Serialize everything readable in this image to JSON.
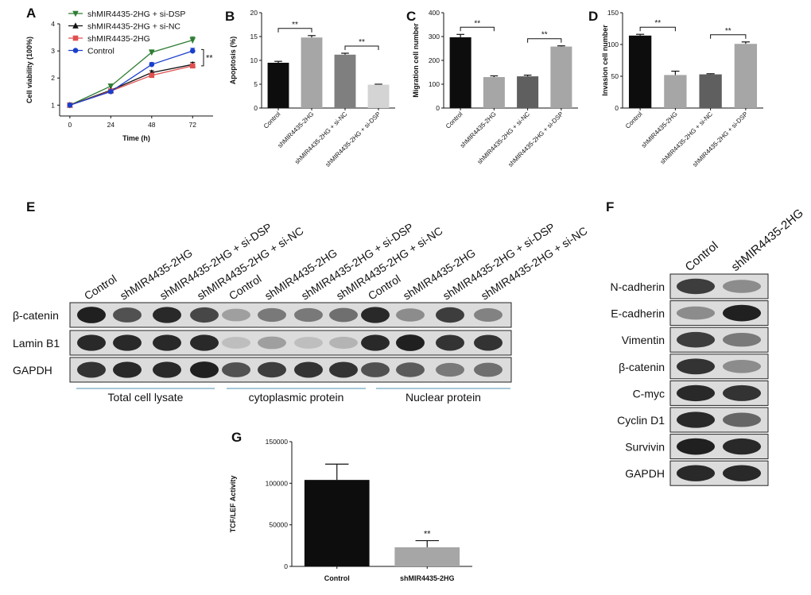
{
  "chart_data": [
    {
      "panel": "A",
      "type": "line",
      "xlabel": "Time (h)",
      "ylabel": "Cell viability (100%)",
      "x": [
        0,
        24,
        48,
        72
      ],
      "xticks": [
        "0",
        "24",
        "48",
        "72"
      ],
      "yticks": [
        "1",
        "2",
        "3",
        "4"
      ],
      "ylim": [
        0.6,
        4
      ],
      "series": [
        {
          "name": "shMIR4435-2HG + si-DSP",
          "color": "#2e7d32",
          "marker": "tri-down",
          "values": [
            1,
            1.7,
            2.95,
            3.4
          ],
          "err": [
            0,
            0.06,
            0.09,
            0.12
          ]
        },
        {
          "name": "shMIR4435-2HG + si-NC",
          "color": "#111111",
          "marker": "tri-up",
          "values": [
            1,
            1.55,
            2.2,
            2.5
          ],
          "err": [
            0,
            0.05,
            0.07,
            0.08
          ]
        },
        {
          "name": "shMIR4435-2HG",
          "color": "#e05050",
          "marker": "square",
          "values": [
            1,
            1.52,
            2.1,
            2.45
          ],
          "err": [
            0,
            0.04,
            0.06,
            0.07
          ]
        },
        {
          "name": "Control",
          "color": "#1a3fcc",
          "marker": "circle",
          "values": [
            1,
            1.5,
            2.5,
            3.0
          ],
          "err": [
            0,
            0.05,
            0.07,
            0.1
          ]
        }
      ],
      "annotation": "**"
    },
    {
      "panel": "B",
      "type": "bar",
      "ylabel": "Apoptosis (%)",
      "categories": [
        "Control",
        "shMIR4435-2HG",
        "shMIR4435-2HG + si-NC",
        "shMIR4435-2HG + si-DSP"
      ],
      "values": [
        9.5,
        14.8,
        11.2,
        4.9
      ],
      "err": [
        0.3,
        0.4,
        0.3,
        0.1
      ],
      "colors": [
        "#0d0d0d",
        "#a6a6a6",
        "#7f7f7f",
        "#d4d4d4"
      ],
      "yticks": [
        "0",
        "5",
        "10",
        "15",
        "20"
      ],
      "ylim": [
        0,
        20
      ],
      "significance": [
        {
          "pair": [
            0,
            1
          ],
          "label": "**"
        },
        {
          "pair": [
            2,
            3
          ],
          "label": "**"
        }
      ]
    },
    {
      "panel": "C",
      "type": "bar",
      "ylabel": "Migration cell number",
      "categories": [
        "Control",
        "shMIR4435-2HG",
        "shMIR4435-2HG + si-NC",
        "shMIR4435-2HG + si-DSP"
      ],
      "values": [
        297,
        130,
        133,
        258
      ],
      "err": [
        12,
        5,
        5,
        3
      ],
      "colors": [
        "#0d0d0d",
        "#a6a6a6",
        "#5f5f5f",
        "#a6a6a6"
      ],
      "yticks": [
        "0",
        "100",
        "200",
        "300",
        "400"
      ],
      "ylim": [
        0,
        400
      ],
      "significance": [
        {
          "pair": [
            0,
            1
          ],
          "label": "**"
        },
        {
          "pair": [
            2,
            3
          ],
          "label": "**"
        }
      ]
    },
    {
      "panel": "D",
      "type": "bar",
      "ylabel": "Invasion cell number",
      "categories": [
        "Control",
        "shMIR4435-2HG",
        "shMIR4435-2HG + si-NC",
        "shMIR4435-2HG + si-DSP"
      ],
      "values": [
        114,
        52,
        53,
        101
      ],
      "err": [
        2,
        6,
        1,
        3
      ],
      "colors": [
        "#0d0d0d",
        "#a6a6a6",
        "#5f5f5f",
        "#a6a6a6"
      ],
      "yticks": [
        "0",
        "50",
        "100",
        "150"
      ],
      "ylim": [
        0,
        150
      ],
      "significance": [
        {
          "pair": [
            0,
            1
          ],
          "label": "**"
        },
        {
          "pair": [
            2,
            3
          ],
          "label": "**"
        }
      ]
    },
    {
      "panel": "G",
      "type": "bar",
      "ylabel": "TCF/LEF Activity",
      "categories": [
        "Control",
        "shMIR4435-2HG"
      ],
      "values": [
        104000,
        23000
      ],
      "err": [
        19000,
        8000
      ],
      "colors": [
        "#0d0d0d",
        "#a6a6a6"
      ],
      "yticks": [
        "0",
        "50000",
        "100000",
        "150000"
      ],
      "ylim": [
        0,
        150000
      ],
      "annotation": "**"
    }
  ],
  "blot_e": {
    "label": "E",
    "lanes": [
      "Control",
      "shMIR4435-2HG",
      "shMIR4435-2HG + si-DSP",
      "shMIR4435-2HG + si-NC",
      "Control",
      "shMIR4435-2HG",
      "shMIR4435-2HG + si-DSP",
      "shMIR4435-2HG + si-NC",
      "Control",
      "shMIR4435-2HG",
      "shMIR4435-2HG + si-DSP",
      "shMIR4435-2HG + si-NC"
    ],
    "rows": [
      {
        "label": "β-catenin",
        "intensity": [
          0.95,
          0.7,
          0.9,
          0.75,
          0.3,
          0.5,
          0.5,
          0.55,
          0.9,
          0.4,
          0.8,
          0.45
        ]
      },
      {
        "label": "Lamin B1",
        "intensity": [
          0.9,
          0.9,
          0.9,
          0.9,
          0.15,
          0.3,
          0.15,
          0.2,
          0.9,
          0.95,
          0.85,
          0.85
        ]
      },
      {
        "label": "GAPDH",
        "intensity": [
          0.85,
          0.9,
          0.9,
          0.95,
          0.7,
          0.8,
          0.85,
          0.85,
          0.7,
          0.65,
          0.5,
          0.55
        ]
      }
    ],
    "groups": [
      "Total cell lysate",
      "cytoplasmic protein",
      "Nuclear protein"
    ]
  },
  "blot_f": {
    "label": "F",
    "lanes": [
      "Control",
      "shMIR4435-2HG"
    ],
    "rows": [
      {
        "label": "N-cadherin",
        "intensity": [
          0.8,
          0.4
        ]
      },
      {
        "label": "E-cadherin",
        "intensity": [
          0.4,
          0.95
        ]
      },
      {
        "label": "Vimentin",
        "intensity": [
          0.8,
          0.5
        ]
      },
      {
        "label": "β-catenin",
        "intensity": [
          0.85,
          0.4
        ]
      },
      {
        "label": "C-myc",
        "intensity": [
          0.9,
          0.85
        ]
      },
      {
        "label": "Cyclin D1",
        "intensity": [
          0.9,
          0.6
        ]
      },
      {
        "label": "Survivin",
        "intensity": [
          0.95,
          0.9
        ]
      },
      {
        "label": "GAPDH",
        "intensity": [
          0.9,
          0.9
        ]
      }
    ]
  }
}
